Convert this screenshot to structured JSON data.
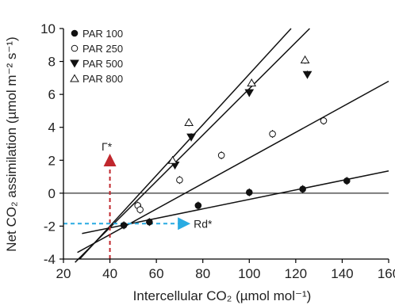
{
  "chart_data": {
    "type": "scatter",
    "xlabel": "Intercellular CO₂ (µmol mol⁻¹)",
    "ylabel": "Net CO₂ assimilation (µmol m⁻² s⁻¹)",
    "xlim": [
      20,
      160
    ],
    "ylim": [
      -4,
      10
    ],
    "xticks": [
      20,
      40,
      60,
      80,
      100,
      120,
      140,
      160
    ],
    "yticks": [
      -4,
      -2,
      0,
      2,
      4,
      6,
      8,
      10
    ],
    "legend_position": "top-left",
    "series": [
      {
        "name": "PAR 100",
        "marker": "filled-circle",
        "color": "#111111",
        "points": [
          [
            46,
            -1.95
          ],
          [
            57,
            -1.75
          ],
          [
            78,
            -0.75
          ],
          [
            100,
            0.05
          ],
          [
            123,
            0.25
          ],
          [
            142,
            0.75
          ]
        ],
        "fit": [
          [
            28,
            -2.45
          ],
          [
            160,
            1.35
          ]
        ]
      },
      {
        "name": "PAR 250",
        "marker": "open-circle",
        "color": "#111111",
        "points": [
          [
            52,
            -0.75
          ],
          [
            53,
            -1.0
          ],
          [
            70,
            0.8
          ],
          [
            88,
            2.3
          ],
          [
            110,
            3.6
          ],
          [
            132,
            4.4
          ]
        ],
        "fit": [
          [
            26,
            -3.6
          ],
          [
            160,
            6.8
          ]
        ]
      },
      {
        "name": "PAR 500",
        "marker": "filled-triangle-down",
        "color": "#111111",
        "points": [
          [
            68,
            1.7
          ],
          [
            75,
            3.4
          ],
          [
            100,
            6.1
          ],
          [
            125,
            7.2
          ]
        ],
        "fit": [
          [
            25,
            -4.2
          ],
          [
            126,
            10
          ]
        ]
      },
      {
        "name": "PAR 800",
        "marker": "open-triangle-up",
        "color": "#111111",
        "points": [
          [
            67,
            2.0
          ],
          [
            74,
            4.3
          ],
          [
            101,
            6.7
          ],
          [
            124,
            8.1
          ]
        ],
        "fit": [
          [
            27,
            -4.0
          ],
          [
            118,
            10
          ]
        ]
      }
    ],
    "annotations": {
      "gamma_star": {
        "label": "Γ*",
        "x": 40,
        "y_from": -4,
        "y_to": 2.3,
        "color": "#c0272d"
      },
      "rd_star": {
        "label": "Rd*",
        "y": -1.85,
        "x_from": 20,
        "x_to": 74,
        "color": "#29abe2"
      }
    }
  }
}
